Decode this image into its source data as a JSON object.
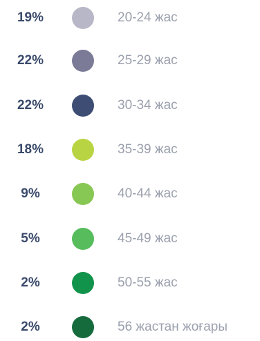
{
  "chart_data": {
    "type": "pie",
    "items": [
      {
        "label": "20-24 жас",
        "value": 19,
        "display": "19%",
        "color": "#b7b7c7"
      },
      {
        "label": "25-29 жас",
        "value": 22,
        "display": "22%",
        "color": "#7b7b98"
      },
      {
        "label": "30-34 жас",
        "value": 22,
        "display": "22%",
        "color": "#3d4d74"
      },
      {
        "label": "35-39 жас",
        "value": 18,
        "display": "18%",
        "color": "#b8d443"
      },
      {
        "label": "40-44 жас",
        "value": 9,
        "display": "9%",
        "color": "#87c753"
      },
      {
        "label": "45-49 жас",
        "value": 5,
        "display": "5%",
        "color": "#56bc5c"
      },
      {
        "label": "50-55 жас",
        "value": 2,
        "display": "2%",
        "color": "#11934b"
      },
      {
        "label": "56 жастан жоғары",
        "value": 2,
        "display": "2%",
        "color": "#166b3d"
      }
    ]
  }
}
